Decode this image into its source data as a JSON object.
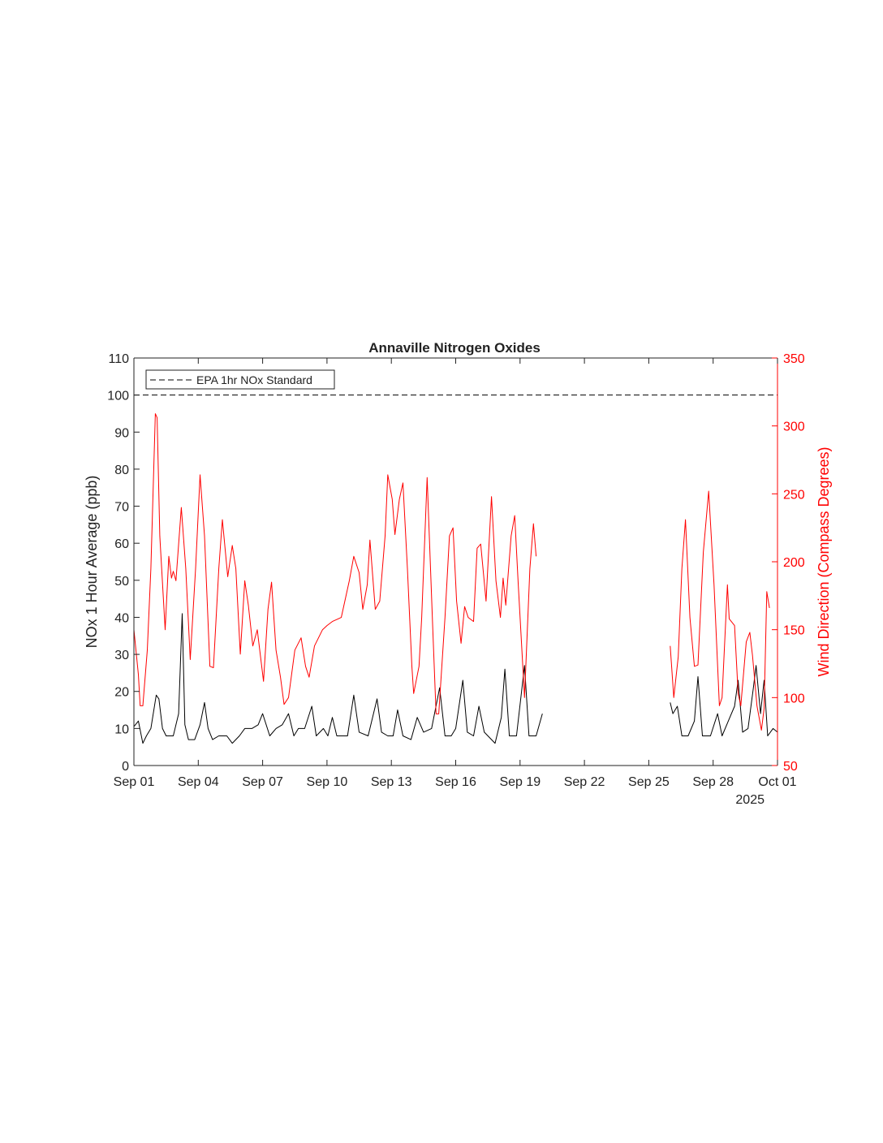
{
  "chart_data": {
    "type": "line",
    "title": "Annaville Nitrogen Oxides",
    "ylabel_left": "NOx 1 Hour Average (ppb)",
    "ylabel_right": "Wind Direction (Compass Degrees)",
    "xlim": [
      "2025-09-01T00:00",
      "2025-10-01T00:00"
    ],
    "ylim_left": [
      0,
      110
    ],
    "ylim_right": [
      50,
      350
    ],
    "yticks_left": [
      0,
      10,
      20,
      30,
      40,
      50,
      60,
      70,
      80,
      90,
      100,
      110
    ],
    "yticks_right": [
      50,
      100,
      150,
      200,
      250,
      300,
      350
    ],
    "xticks": [
      {
        "t": "2025-09-01T00:00",
        "label": "Sep 01"
      },
      {
        "t": "2025-09-04T00:00",
        "label": "Sep 04"
      },
      {
        "t": "2025-09-07T00:00",
        "label": "Sep 07"
      },
      {
        "t": "2025-09-10T00:00",
        "label": "Sep 10"
      },
      {
        "t": "2025-09-13T00:00",
        "label": "Sep 13"
      },
      {
        "t": "2025-09-16T00:00",
        "label": "Sep 16"
      },
      {
        "t": "2025-09-19T00:00",
        "label": "Sep 19"
      },
      {
        "t": "2025-09-22T00:00",
        "label": "Sep 22"
      },
      {
        "t": "2025-09-25T00:00",
        "label": "Sep 25"
      },
      {
        "t": "2025-09-28T00:00",
        "label": "Sep 28"
      },
      {
        "t": "2025-10-01T00:00",
        "label": "Oct 01"
      }
    ],
    "x_secondary_label": "2025",
    "grid": false,
    "legend": {
      "placement": "top-left",
      "entries": [
        "EPA 1hr NOx Standard"
      ]
    },
    "colors": {
      "nox": "#000000",
      "wind": "#ff0000",
      "standard": "#000000",
      "right_axis": "#ff0000"
    },
    "reference_line": {
      "name": "EPA 1hr NOx Standard",
      "y": 100,
      "style": "dashed"
    },
    "series": [
      {
        "key": "nox",
        "axis": "left",
        "segments": [
          [
            [
              "2025-09-01T00:00",
              10.5
            ],
            [
              "2025-09-01T05:00",
              12
            ],
            [
              "2025-09-01T10:00",
              6
            ],
            [
              "2025-09-01T14:00",
              8
            ],
            [
              "2025-09-01T19:00",
              10
            ],
            [
              "2025-09-02T01:00",
              19
            ],
            [
              "2025-09-02T04:00",
              18
            ],
            [
              "2025-09-02T08:00",
              10
            ],
            [
              "2025-09-02T12:00",
              8
            ],
            [
              "2025-09-02T20:00",
              8
            ],
            [
              "2025-09-03T02:00",
              14
            ],
            [
              "2025-09-03T06:00",
              41
            ],
            [
              "2025-09-03T09:00",
              11
            ],
            [
              "2025-09-03T13:00",
              7
            ],
            [
              "2025-09-03T20:00",
              7
            ],
            [
              "2025-09-04T02:00",
              11
            ],
            [
              "2025-09-04T07:00",
              17
            ],
            [
              "2025-09-04T11:00",
              10
            ],
            [
              "2025-09-04T16:00",
              7
            ],
            [
              "2025-09-04T23:00",
              8
            ],
            [
              "2025-09-05T08:00",
              8
            ],
            [
              "2025-09-05T14:00",
              6
            ],
            [
              "2025-09-05T22:00",
              8
            ],
            [
              "2025-09-06T04:00",
              10
            ],
            [
              "2025-09-06T12:00",
              10
            ],
            [
              "2025-09-06T19:00",
              11
            ],
            [
              "2025-09-07T00:00",
              14
            ],
            [
              "2025-09-07T08:00",
              8
            ],
            [
              "2025-09-07T15:00",
              10
            ],
            [
              "2025-09-07T22:00",
              11
            ],
            [
              "2025-09-08T05:00",
              14
            ],
            [
              "2025-09-08T11:00",
              8
            ],
            [
              "2025-09-08T16:00",
              10
            ],
            [
              "2025-09-08T23:00",
              10
            ],
            [
              "2025-09-09T07:00",
              16
            ],
            [
              "2025-09-09T12:00",
              8
            ],
            [
              "2025-09-09T20:00",
              10
            ],
            [
              "2025-09-10T01:00",
              8
            ],
            [
              "2025-09-10T06:00",
              13
            ],
            [
              "2025-09-10T11:00",
              8
            ],
            [
              "2025-09-10T23:00",
              8
            ],
            [
              "2025-09-11T06:00",
              19
            ],
            [
              "2025-09-11T12:00",
              9
            ],
            [
              "2025-09-11T22:00",
              8
            ],
            [
              "2025-09-12T08:00",
              18
            ],
            [
              "2025-09-12T13:00",
              9
            ],
            [
              "2025-09-12T20:00",
              8
            ],
            [
              "2025-09-13T02:00",
              8
            ],
            [
              "2025-09-13T07:00",
              15
            ],
            [
              "2025-09-13T13:00",
              8
            ],
            [
              "2025-09-13T22:00",
              7
            ],
            [
              "2025-09-14T05:00",
              13
            ],
            [
              "2025-09-14T12:00",
              9
            ],
            [
              "2025-09-14T21:00",
              10
            ],
            [
              "2025-09-15T06:00",
              21
            ],
            [
              "2025-09-15T12:00",
              8
            ],
            [
              "2025-09-15T19:00",
              8
            ],
            [
              "2025-09-16T00:00",
              10
            ],
            [
              "2025-09-16T08:00",
              23
            ],
            [
              "2025-09-16T13:00",
              9
            ],
            [
              "2025-09-16T20:00",
              8
            ],
            [
              "2025-09-17T02:00",
              16
            ],
            [
              "2025-09-17T08:00",
              9
            ],
            [
              "2025-09-17T20:00",
              6
            ],
            [
              "2025-09-18T03:00",
              13
            ],
            [
              "2025-09-18T07:00",
              26
            ],
            [
              "2025-09-18T12:00",
              8
            ],
            [
              "2025-09-18T20:00",
              8
            ],
            [
              "2025-09-19T05:00",
              27
            ],
            [
              "2025-09-19T10:00",
              8
            ],
            [
              "2025-09-19T18:00",
              8
            ],
            [
              "2025-09-20T01:00",
              14
            ]
          ],
          [
            [
              "2025-09-26T00:00",
              17
            ],
            [
              "2025-09-26T03:00",
              14
            ],
            [
              "2025-09-26T08:00",
              16
            ],
            [
              "2025-09-26T13:00",
              8
            ],
            [
              "2025-09-26T20:00",
              8
            ],
            [
              "2025-09-27T03:00",
              12
            ],
            [
              "2025-09-27T07:00",
              24
            ],
            [
              "2025-09-27T12:00",
              8
            ],
            [
              "2025-09-27T21:00",
              8
            ],
            [
              "2025-09-28T05:00",
              14
            ],
            [
              "2025-09-28T10:00",
              8
            ],
            [
              "2025-09-28T17:00",
              12
            ],
            [
              "2025-09-29T00:00",
              16
            ],
            [
              "2025-09-29T04:00",
              23
            ],
            [
              "2025-09-29T09:00",
              9
            ],
            [
              "2025-09-29T15:00",
              10
            ],
            [
              "2025-09-29T21:00",
              21
            ],
            [
              "2025-09-30T00:00",
              27
            ],
            [
              "2025-09-30T05:00",
              14
            ],
            [
              "2025-09-30T09:00",
              23
            ],
            [
              "2025-09-30T13:00",
              8
            ],
            [
              "2025-09-30T19:00",
              10
            ],
            [
              "2025-10-01T00:00",
              9
            ]
          ]
        ]
      },
      {
        "key": "wind",
        "axis": "right",
        "segments": [
          [
            [
              "2025-09-01T00:00",
              150
            ],
            [
              "2025-09-01T05:00",
              117
            ],
            [
              "2025-09-01T07:00",
              94
            ],
            [
              "2025-09-01T10:00",
              94
            ],
            [
              "2025-09-01T15:00",
              135
            ],
            [
              "2025-09-01T19:00",
              195
            ],
            [
              "2025-09-02T00:00",
              309
            ],
            [
              "2025-09-02T02:00",
              306
            ],
            [
              "2025-09-02T05:00",
              219
            ],
            [
              "2025-09-02T11:00",
              150
            ],
            [
              "2025-09-02T15:00",
              204
            ],
            [
              "2025-09-02T18:00",
              188
            ],
            [
              "2025-09-02T20:00",
              193
            ],
            [
              "2025-09-02T23:00",
              186
            ],
            [
              "2025-09-03T05:00",
              240
            ],
            [
              "2025-09-03T10:00",
              195
            ],
            [
              "2025-09-03T15:00",
              128
            ],
            [
              "2025-09-03T21:00",
              195
            ],
            [
              "2025-09-04T02:00",
              264
            ],
            [
              "2025-09-04T07:00",
              219
            ],
            [
              "2025-09-04T13:00",
              123
            ],
            [
              "2025-09-04T17:00",
              122
            ],
            [
              "2025-09-04T23:00",
              195
            ],
            [
              "2025-09-05T03:00",
              231
            ],
            [
              "2025-09-05T09:00",
              189
            ],
            [
              "2025-09-05T14:00",
              212
            ],
            [
              "2025-09-05T18:00",
              195
            ],
            [
              "2025-09-05T23:00",
              132
            ],
            [
              "2025-09-06T04:00",
              186
            ],
            [
              "2025-09-06T08:00",
              168
            ],
            [
              "2025-09-06T13:00",
              138
            ],
            [
              "2025-09-06T18:00",
              150
            ],
            [
              "2025-09-07T01:00",
              112
            ],
            [
              "2025-09-07T06:00",
              165
            ],
            [
              "2025-09-07T10:00",
              185
            ],
            [
              "2025-09-07T15:00",
              135
            ],
            [
              "2025-09-07T20:00",
              115
            ],
            [
              "2025-09-08T00:00",
              95
            ],
            [
              "2025-09-08T05:00",
              100
            ],
            [
              "2025-09-08T12:00",
              135
            ],
            [
              "2025-09-08T19:00",
              144
            ],
            [
              "2025-09-09T00:00",
              123
            ],
            [
              "2025-09-09T04:00",
              115
            ],
            [
              "2025-09-09T10:00",
              138
            ],
            [
              "2025-09-09T19:00",
              150
            ],
            [
              "2025-09-10T00:00",
              153
            ],
            [
              "2025-09-10T06:00",
              156
            ],
            [
              "2025-09-10T16:00",
              159
            ],
            [
              "2025-09-11T01:00",
              186
            ],
            [
              "2025-09-11T06:00",
              204
            ],
            [
              "2025-09-11T12:00",
              192
            ],
            [
              "2025-09-11T16:00",
              165
            ],
            [
              "2025-09-11T21:00",
              183
            ],
            [
              "2025-09-12T00:00",
              216
            ],
            [
              "2025-09-12T06:00",
              165
            ],
            [
              "2025-09-12T11:00",
              171
            ],
            [
              "2025-09-12T17:00",
              219
            ],
            [
              "2025-09-12T20:00",
              264
            ],
            [
              "2025-09-13T01:00",
              246
            ],
            [
              "2025-09-13T04:00",
              220
            ],
            [
              "2025-09-13T09:00",
              246
            ],
            [
              "2025-09-13T13:00",
              258
            ],
            [
              "2025-09-13T18:00",
              195
            ],
            [
              "2025-09-13T23:00",
              123
            ],
            [
              "2025-09-14T01:00",
              103
            ],
            [
              "2025-09-14T07:00",
              123
            ],
            [
              "2025-09-14T10:00",
              159
            ],
            [
              "2025-09-14T16:00",
              262
            ],
            [
              "2025-09-14T22:00",
              156
            ],
            [
              "2025-09-15T02:00",
              88
            ],
            [
              "2025-09-15T05:00",
              88
            ],
            [
              "2025-09-15T12:00",
              159
            ],
            [
              "2025-09-15T17:00",
              219
            ],
            [
              "2025-09-15T21:00",
              225
            ],
            [
              "2025-09-16T01:00",
              171
            ],
            [
              "2025-09-16T06:00",
              140
            ],
            [
              "2025-09-16T10:00",
              167
            ],
            [
              "2025-09-16T14:00",
              159
            ],
            [
              "2025-09-16T20:00",
              156
            ],
            [
              "2025-09-17T00:00",
              210
            ],
            [
              "2025-09-17T04:00",
              213
            ],
            [
              "2025-09-17T10:00",
              171
            ],
            [
              "2025-09-17T16:00",
              248
            ],
            [
              "2025-09-17T21:00",
              186
            ],
            [
              "2025-09-18T02:00",
              159
            ],
            [
              "2025-09-18T05:00",
              188
            ],
            [
              "2025-09-18T08:00",
              168
            ],
            [
              "2025-09-18T14:00",
              219
            ],
            [
              "2025-09-18T18:00",
              234
            ],
            [
              "2025-09-18T22:00",
              183
            ],
            [
              "2025-09-19T05:00",
              100
            ],
            [
              "2025-09-19T11:00",
              195
            ],
            [
              "2025-09-19T15:00",
              228
            ],
            [
              "2025-09-19T18:00",
              204
            ]
          ],
          [
            [
              "2025-09-26T00:00",
              138
            ],
            [
              "2025-09-26T04:00",
              100
            ],
            [
              "2025-09-26T09:00",
              130
            ],
            [
              "2025-09-26T13:00",
              195
            ],
            [
              "2025-09-26T17:00",
              231
            ],
            [
              "2025-09-26T22:00",
              159
            ],
            [
              "2025-09-27T03:00",
              123
            ],
            [
              "2025-09-27T07:00",
              124
            ],
            [
              "2025-09-27T13:00",
              207
            ],
            [
              "2025-09-27T19:00",
              252
            ],
            [
              "2025-09-28T01:00",
              183
            ],
            [
              "2025-09-28T07:00",
              94
            ],
            [
              "2025-09-28T10:00",
              100
            ],
            [
              "2025-09-28T16:00",
              183
            ],
            [
              "2025-09-28T18:00",
              158
            ],
            [
              "2025-09-29T00:00",
              153
            ],
            [
              "2025-09-29T04:00",
              103
            ],
            [
              "2025-09-29T07:00",
              94
            ],
            [
              "2025-09-29T13:00",
              141
            ],
            [
              "2025-09-29T17:00",
              148
            ],
            [
              "2025-09-29T20:00",
              131
            ],
            [
              "2025-09-30T01:00",
              94
            ],
            [
              "2025-09-30T06:00",
              76
            ],
            [
              "2025-09-30T09:00",
              92
            ],
            [
              "2025-09-30T12:00",
              178
            ],
            [
              "2025-09-30T15:00",
              166
            ]
          ]
        ]
      }
    ]
  }
}
